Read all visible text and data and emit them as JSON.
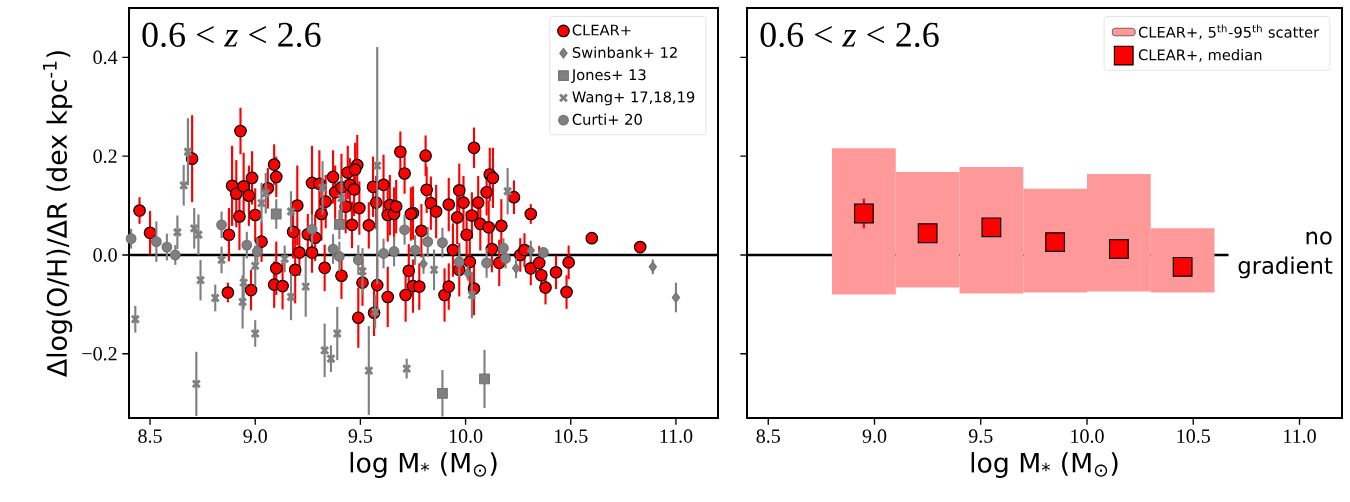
{
  "chart_data": [
    {
      "type": "scatter",
      "annotations": [
        "0.6 < *z* < 2.6"
      ],
      "xlabel": "log M$_{*}$ (M$_{⊙}$)",
      "ylabel": "Δlog(O/H)/ΔR (dex kpc$^{-1}$)",
      "xlim": [
        8.4,
        11.2
      ],
      "ylim": [
        -0.33,
        0.5
      ],
      "xticks": [
        8.5,
        {
          "value": 9,
          "label": "9.0"
        },
        9.5,
        {
          "value": 10,
          "label": "10.0"
        },
        10.5,
        {
          "value": 11,
          "label": "11.0"
        }
      ],
      "yticks": [
        {
          "value": -0.2,
          "label": "−0.2"
        },
        {
          "value": 0,
          "label": "0.0"
        },
        0.2,
        0.4
      ],
      "legend": "top right",
      "ref_lines": [
        {
          "axis": "y",
          "value": 0
        }
      ],
      "series": [
        {
          "name": "CLEAR+",
          "marker": "circle",
          "color": "#ff0000",
          "x": [
            8.45,
            8.5,
            8.7,
            8.93,
            8.89,
            8.91,
            8.925,
            8.875,
            8.945,
            8.985,
            8.97,
            9.0,
            8.87,
            8.98,
            9.03,
            9.06,
            9.09,
            9.1,
            9.1,
            9.09,
            9.13,
            9.2,
            9.18,
            9.19,
            9.21,
            9.25,
            9.27,
            9.27,
            9.305,
            9.315,
            9.285,
            9.335,
            9.33,
            9.37,
            9.38,
            9.41,
            9.44,
            9.45,
            9.47,
            9.485,
            9.475,
            9.43,
            9.495,
            9.46,
            9.41,
            9.51,
            9.49,
            9.54,
            9.56,
            9.575,
            9.58,
            9.565,
            9.61,
            9.64,
            9.63,
            9.63,
            9.66,
            9.67,
            9.69,
            9.71,
            9.715,
            9.73,
            9.75,
            9.75,
            9.81,
            9.815,
            9.835,
            9.86,
            9.74,
            9.79,
            9.78,
            9.9,
            9.92,
            9.92,
            9.96,
            9.97,
            9.99,
            10.005,
            9.94,
            9.97,
            10.04,
            10.06,
            10.03,
            10.07,
            10.04,
            10.02,
            10.1,
            10.115,
            10.13,
            10.11,
            10.125,
            10.17,
            10.16,
            10.23,
            10.31,
            10.26,
            10.28,
            10.31,
            10.35,
            10.36,
            10.38,
            10.43,
            10.49,
            10.48,
            10.6,
            10.83
          ],
          "values": [
            0.09,
            0.045,
            0.195,
            0.251,
            0.14,
            0.124,
            0.078,
            0.041,
            0.139,
            0.156,
            0.12,
            0.081,
            -0.076,
            -0.071,
            0.027,
            0.135,
            0.183,
            0.158,
            -0.027,
            -0.06,
            -0.063,
            0.1,
            0.047,
            -0.03,
            0.005,
            0.042,
            0.146,
            0.005,
            0.144,
            0.083,
            0.035,
            0.108,
            -0.026,
            0.158,
            0.127,
            0.137,
            0.167,
            0.142,
            0.133,
            0.182,
            0.173,
            0.098,
            0.095,
            0.061,
            -0.042,
            -0.056,
            -0.127,
            0.06,
            0.138,
            0.106,
            -0.061,
            -0.117,
            0.142,
            0.101,
            0.081,
            -0.085,
            0.083,
            0.098,
            0.209,
            0.165,
            -0.081,
            -0.032,
            0.085,
            -0.063,
            0.201,
            0.132,
            0.105,
            0.088,
            0.083,
            0.049,
            -0.064,
            -0.081,
            -0.064,
            0.102,
            0.076,
            0.131,
            0.106,
            0.041,
            0.01,
            -0.03,
            0.217,
            0.106,
            0.08,
            0.063,
            -0.068,
            -0.014,
            0.127,
            0.163,
            0.156,
            0.056,
            0.012,
            0.059,
            -0.016,
            0.117,
            0.083,
            0.0,
            0.01,
            -0.027,
            -0.016,
            -0.041,
            -0.066,
            -0.035,
            -0.015,
            -0.075,
            0.034,
            0.016
          ],
          "errors": [
            0.027,
            0.044,
            0.088,
            0.047,
            0.081,
            0.068,
            0.068,
            0.054,
            0.068,
            0.054,
            0.061,
            0.054,
            0.02,
            0.041,
            0.041,
            0.041,
            0.041,
            0.041,
            0.054,
            0.047,
            0.047,
            0.081,
            0.054,
            0.068,
            0.047,
            0.041,
            0.075,
            0.041,
            0.068,
            0.054,
            0.047,
            0.054,
            0.047,
            0.054,
            0.054,
            0.068,
            0.054,
            0.054,
            0.054,
            0.061,
            0.054,
            0.054,
            0.054,
            0.047,
            0.047,
            0.047,
            0.061,
            0.047,
            0.061,
            0.054,
            0.054,
            0.047,
            0.061,
            0.061,
            0.054,
            0.061,
            0.054,
            0.054,
            0.041,
            0.041,
            0.054,
            0.054,
            0.054,
            0.054,
            0.041,
            0.047,
            0.054,
            0.054,
            0.054,
            0.054,
            0.047,
            0.054,
            0.047,
            0.054,
            0.054,
            0.054,
            0.054,
            0.047,
            0.054,
            0.054,
            0.041,
            0.054,
            0.047,
            0.054,
            0.054,
            0.047,
            0.047,
            0.054,
            0.061,
            0.054,
            0.047,
            0.054,
            0.047,
            0.034,
            0.02,
            0.034,
            0.034,
            0.034,
            0.034,
            0.034,
            0.034,
            0.034,
            0.034,
            0.034,
            0.01,
            0.01
          ]
        },
        {
          "name": "Swinbank+ 12",
          "marker": "diamond",
          "color": "#808080",
          "x": [
            9.8,
            10.01,
            10.24,
            10.31,
            10.89,
            11.0
          ],
          "values": [
            -0.018,
            -0.037,
            -0.027,
            0.009,
            -0.024,
            -0.086
          ],
          "errors": [
            0.02,
            0.015,
            0.02,
            0.02,
            0.015,
            0.03
          ]
        },
        {
          "name": "Jones+ 13",
          "marker": "square",
          "color": "#808080",
          "x": [
            9.1,
            9.4,
            9.89,
            10.09
          ],
          "values": [
            0.083,
            0.062,
            -0.28,
            -0.251
          ],
          "errors": [
            0.03,
            0.03,
            0.047,
            0.059
          ]
        },
        {
          "name": "Wang+ 17,18,19",
          "marker": "cross",
          "color": "#808080",
          "x": [
            8.43,
            8.68,
            8.66,
            8.71,
            8.73,
            8.72,
            8.74,
            8.63,
            8.81,
            8.84,
            8.94,
            8.945,
            9.0,
            9.0,
            9.05,
            9.03,
            9.17,
            9.14,
            9.17,
            9.24,
            9.33,
            9.36,
            9.39,
            9.32,
            9.41,
            9.54,
            9.58,
            9.57,
            9.72,
            9.51,
            10.2,
            10.03,
            9.85
          ],
          "values": [
            -0.13,
            0.209,
            0.141,
            0.054,
            0.041,
            -0.261,
            -0.051,
            0.046,
            -0.087,
            -0.01,
            -0.095,
            -0.056,
            -0.159,
            -0.022,
            0.125,
            0.105,
            0.088,
            -0.008,
            -0.085,
            -0.064,
            -0.193,
            -0.21,
            -0.159,
            0.136,
            0.115,
            -0.234,
            0.181,
            -0.115,
            -0.23,
            -0.033,
            0.129,
            -0.081,
            -0.03
          ],
          "errors": [
            0.027,
            0.068,
            0.041,
            0.041,
            0.041,
            0.065,
            0.041,
            0.034,
            0.027,
            0.027,
            0.054,
            0.054,
            0.027,
            0.041,
            0.041,
            0.041,
            0.041,
            0.027,
            0.047,
            0.061,
            0.054,
            0.027,
            0.054,
            0.054,
            0.041,
            0.09,
            0.24,
            0.034,
            0.02,
            0.047,
            0.047,
            0.047,
            0.041
          ]
        },
        {
          "name": "Curti+ 20",
          "marker": "circle",
          "color": "#808080",
          "x": [
            8.41,
            8.53,
            8.58,
            8.62,
            8.84,
            8.96,
            9.01,
            9.27,
            9.37,
            9.4,
            9.49,
            9.61,
            9.66,
            9.71,
            9.76,
            9.82,
            9.89,
            9.97,
            10.1,
            10.18,
            10.19,
            10.37
          ],
          "values": [
            0.033,
            0.027,
            0.016,
            0.0,
            0.061,
            0.02,
            0.007,
            0.052,
            0.012,
            -0.003,
            -0.01,
            0.003,
            0.007,
            0.051,
            0.01,
            0.027,
            0.025,
            -0.014,
            -0.016,
            0.014,
            -0.007,
            0.005
          ],
          "errors": [
            0.02,
            0.041,
            0.027,
            0.02,
            0.027,
            0.027,
            0.027,
            0.03,
            0.03,
            0.03,
            0.03,
            0.03,
            0.03,
            0.03,
            0.03,
            0.03,
            0.03,
            0.03,
            0.03,
            0.02,
            0.02,
            0.01
          ]
        }
      ]
    },
    {
      "type": "scatter",
      "annotations": [
        "0.6 < *z* < 2.6"
      ],
      "xlabel": "log M$_{*}$ (M$_{⊙}$)",
      "xlim": [
        8.4,
        11.2
      ],
      "ylim": [
        -0.33,
        0.5
      ],
      "xticks": [
        8.5,
        {
          "value": 9,
          "label": "9.0"
        },
        9.5,
        {
          "value": 10,
          "label": "10.0"
        },
        10.5,
        {
          "value": 11,
          "label": "11.0"
        }
      ],
      "yticks": [
        {
          "value": -0.2,
          "label": null
        },
        {
          "value": 0,
          "label": null
        },
        {
          "value": 0.2,
          "label": null
        },
        {
          "value": 0.4,
          "label": null
        }
      ],
      "tick_labels": "x",
      "legend": "top right",
      "ref_lines": [
        {
          "axis": "y",
          "value": 0,
          "label": "no gradient"
        }
      ],
      "series": [
        {
          "name": "CLEAR+, 5$^{th}$-95$^{th}$ scatter",
          "type": "bar",
          "color": "#ff9999",
          "x": [
            8.95,
            9.25,
            9.55,
            9.85,
            10.15,
            10.45
          ],
          "base": [
            -0.08,
            -0.066,
            -0.078,
            -0.076,
            -0.074,
            -0.076
          ],
          "values": [
            0.296,
            0.234,
            0.256,
            0.21,
            0.238,
            0.13
          ]
        },
        {
          "name": "CLEAR+, median",
          "marker": "square",
          "color": "#ff0000",
          "x": [
            8.95,
            9.25,
            9.55,
            9.85,
            10.15,
            10.45
          ],
          "values": [
            0.084,
            0.044,
            0.056,
            0.026,
            0.012,
            -0.024
          ],
          "errors": [
            0.03,
            null,
            null,
            null,
            null,
            null
          ]
        }
      ]
    }
  ]
}
